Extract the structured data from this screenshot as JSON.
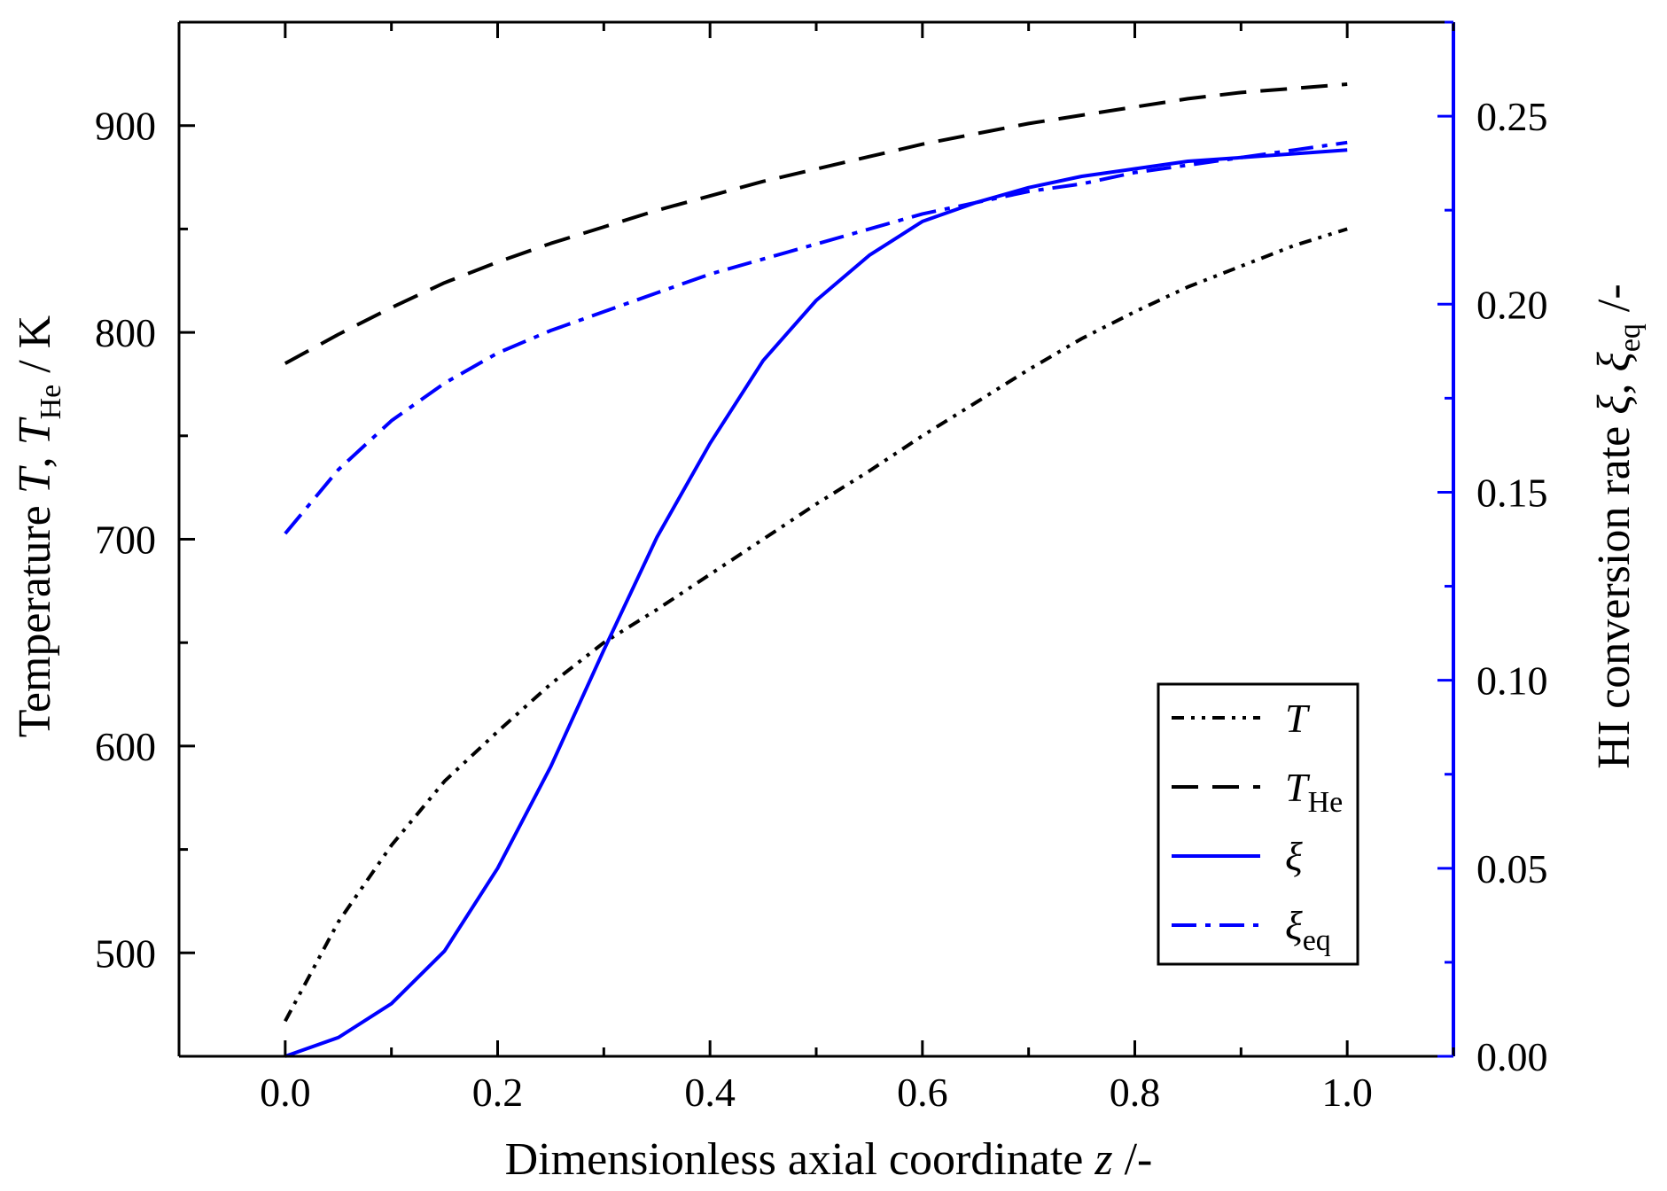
{
  "chart_data": {
    "type": "line",
    "title": "",
    "xlabel": {
      "main": "Dimensionless axial coordinate ",
      "var": "z",
      "unit": " /-"
    },
    "ylabel_left": {
      "main": "Temperature ",
      "var1": "T",
      "sep": ", ",
      "var2": "T",
      "sub2": "He",
      "unit": " / K"
    },
    "ylabel_right": {
      "main": "HI conversion rate ",
      "var1": "ξ",
      "sep": ", ",
      "var2": "ξ",
      "sub2": "eq",
      "unit": " /-"
    },
    "xlim": [
      -0.1,
      1.1
    ],
    "ylim_left": [
      450,
      950
    ],
    "ylim_right": [
      0,
      0.275
    ],
    "x_ticks": [
      "0.0",
      "0.2",
      "0.4",
      "0.6",
      "0.8",
      "1.0"
    ],
    "y_left_ticks": [
      "500",
      "600",
      "700",
      "800",
      "900"
    ],
    "y_right_ticks": [
      "0.00",
      "0.05",
      "0.10",
      "0.15",
      "0.20",
      "0.25"
    ],
    "colors": {
      "black": "#000000",
      "blue": "#0000ff"
    },
    "x": [
      0.0,
      0.05,
      0.1,
      0.15,
      0.2,
      0.25,
      0.3,
      0.35,
      0.4,
      0.45,
      0.5,
      0.55,
      0.6,
      0.65,
      0.7,
      0.75,
      0.8,
      0.85,
      0.9,
      0.95,
      1.0
    ],
    "series": [
      {
        "name": "T",
        "label_var": "T",
        "label_sub": "",
        "axis": "left",
        "style": "dash-dot-dot",
        "color": "#000000",
        "values": [
          467,
          515,
          552,
          583,
          607,
          630,
          650,
          666,
          683,
          700,
          717,
          733,
          750,
          766,
          782,
          797,
          810,
          822,
          832,
          842,
          850
        ]
      },
      {
        "name": "T_He",
        "label_var": "T",
        "label_sub": "He",
        "axis": "left",
        "style": "dash",
        "color": "#000000",
        "values": [
          785,
          799,
          812,
          824,
          834,
          843,
          851,
          859,
          866,
          873,
          879,
          885,
          891,
          896,
          901,
          905,
          909,
          913,
          916,
          918,
          920
        ]
      },
      {
        "name": "ξ",
        "label_var": "ξ",
        "label_sub": "",
        "axis": "right",
        "style": "solid",
        "color": "#0000ff",
        "values": [
          0.0,
          0.005,
          0.014,
          0.028,
          0.05,
          0.077,
          0.108,
          0.138,
          0.163,
          0.185,
          0.201,
          0.213,
          0.222,
          0.227,
          0.231,
          0.234,
          0.236,
          0.238,
          0.239,
          0.24,
          0.241
        ]
      },
      {
        "name": "ξ_eq",
        "label_var": "ξ",
        "label_sub": "eq",
        "axis": "right",
        "style": "dash-dot",
        "color": "#0000ff",
        "values": [
          0.139,
          0.156,
          0.169,
          0.179,
          0.187,
          0.193,
          0.198,
          0.203,
          0.208,
          0.212,
          0.216,
          0.22,
          0.224,
          0.227,
          0.23,
          0.232,
          0.235,
          0.237,
          0.239,
          0.241,
          0.243
        ]
      }
    ],
    "legend": {
      "position": "lower-right"
    }
  }
}
